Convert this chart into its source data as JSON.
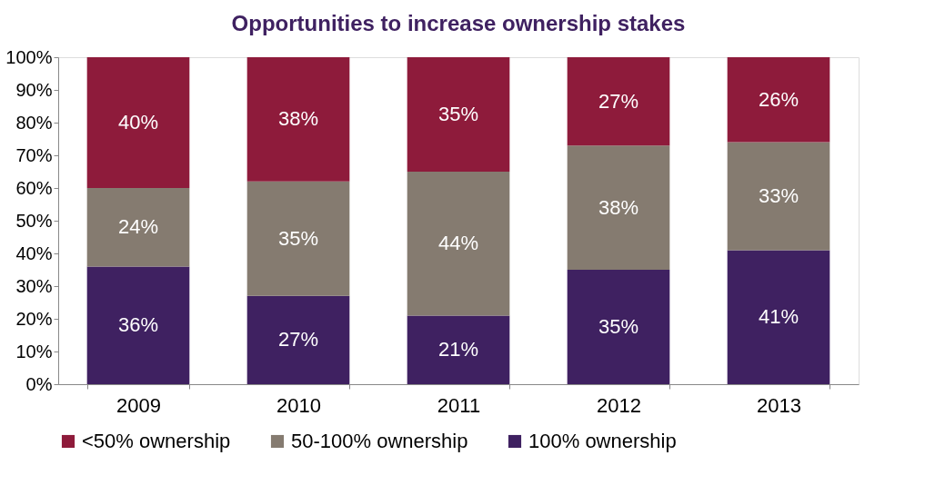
{
  "chart_data": {
    "type": "bar",
    "title": "Opportunities to increase ownership stakes",
    "stacked": true,
    "categories": [
      "2009",
      "2010",
      "2011",
      "2012",
      "2013"
    ],
    "series": [
      {
        "name": "100% ownership",
        "color": "#3f2161",
        "values": [
          36,
          27,
          21,
          35,
          41
        ],
        "value_labels": [
          "36%",
          "27%",
          "21%",
          "35%",
          "41%"
        ]
      },
      {
        "name": "50-100% ownership",
        "color": "#857b70",
        "values": [
          24,
          35,
          44,
          38,
          33
        ],
        "value_labels": [
          "24%",
          "35%",
          "44%",
          "38%",
          "33%"
        ]
      },
      {
        "name": "<50% ownership",
        "color": "#8e1b3b",
        "values": [
          40,
          38,
          35,
          27,
          26
        ],
        "value_labels": [
          "40%",
          "38%",
          "35%",
          "27%",
          "26%"
        ]
      }
    ],
    "ylim": [
      0,
      100
    ],
    "yticks": [
      {
        "value": 0,
        "label": "0%"
      },
      {
        "value": 10,
        "label": "10%"
      },
      {
        "value": 20,
        "label": "20%"
      },
      {
        "value": 30,
        "label": "30%"
      },
      {
        "value": 40,
        "label": "40%"
      },
      {
        "value": 50,
        "label": "50%"
      },
      {
        "value": 60,
        "label": "60%"
      },
      {
        "value": 70,
        "label": "70%"
      },
      {
        "value": 80,
        "label": "80%"
      },
      {
        "value": 90,
        "label": "90%"
      },
      {
        "value": 100,
        "label": "100%"
      }
    ],
    "grid": false,
    "legend": "bottom"
  }
}
